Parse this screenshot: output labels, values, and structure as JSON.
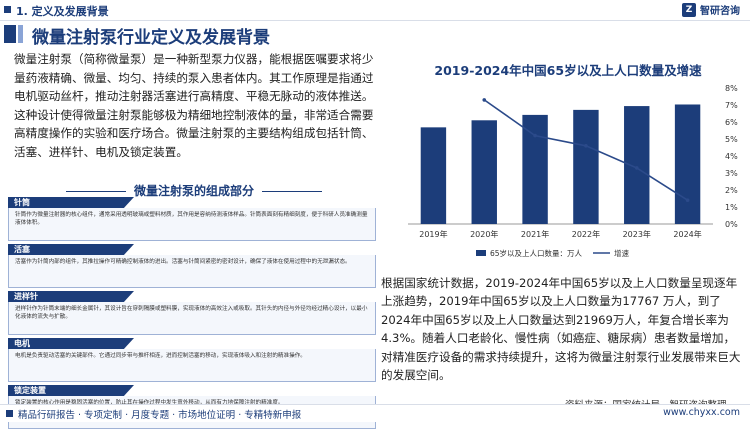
{
  "header": {
    "section": "1. 定义及发展背景",
    "logo_text": "智研咨询",
    "logo_mark": "Z"
  },
  "title": "微量注射泵行业定义及发展背景",
  "intro": "微量注射泵（简称微量泵）是一种新型泵力仪器，能根据医嘱要求将少量药液精确、微量、均匀、持续的泵入患者体内。其工作原理是指通过电机驱动丝杆，推动注射器活塞进行高精度、平稳无脉动的液体推送。这种设计使得微量注射泵能够极为精细地控制液体的量，非常适合需要高精度操作的实验和医疗场合。微量注射泵的主要结构组成包括针筒、活塞、进样针、电机及锁定装置。",
  "components": {
    "title": "微量注射泵的组成部分",
    "items": [
      {
        "name": "针筒",
        "text": "针筒作为微量注射器的核心组件，通常采用透明玻璃或塑料材质，其作用是容纳待测液体样品。针筒表面刻有精细刻度，便于科研人员准确测量液体体积。"
      },
      {
        "name": "活塞",
        "text": "活塞作为针筒内部的组件，其推拉操作可精确控制液体的进出。活塞与针筒间紧密的密封设计，确保了液体在使用过程中的无泄漏状态。"
      },
      {
        "name": "进样针",
        "text": "进样针作为针筒末端的细长金属针，其设计旨在穿刺隔膜或塑料膜，实现液体的高效注入或吸取。其针头的内径与外径均经过精心设计，以最小化液体的流失与扩散。"
      },
      {
        "name": "电机",
        "text": "电机是负责驱动活塞的关键部件。它通过同步带与推杆相连，进而控制活塞的移动，实现液体吸入和注射的精准操作。"
      },
      {
        "name": "锁定装置",
        "text": "锁定装置的核心作用是稳固活塞的位置，防止其在操作过程中发生意外移动，从而有力地保障注射的精准度。"
      }
    ]
  },
  "chart_data": {
    "type": "bar",
    "title": "2019-2024年中国65岁以及上人口数量及增速",
    "categories": [
      "2019年",
      "2020年",
      "2021年",
      "2022年",
      "2023年",
      "2024年"
    ],
    "series": [
      {
        "name": "65岁以及上人口数量：万人",
        "type": "bar",
        "axis": "left",
        "values": [
          17767,
          19064,
          20056,
          20978,
          21676,
          21969
        ]
      },
      {
        "name": "增速",
        "type": "line",
        "axis": "right",
        "values": [
          null,
          7.3,
          5.2,
          4.6,
          3.3,
          1.4
        ]
      }
    ],
    "ylim": [
      0,
      25000
    ],
    "y2lim": [
      0,
      8
    ],
    "y2ticks": [
      "0%",
      "1%",
      "2%",
      "3%",
      "4%",
      "5%",
      "6%",
      "7%",
      "8%"
    ],
    "legend_position": "bottom",
    "colors": {
      "bar": "#1c3d7a",
      "line": "#1c3d7a"
    }
  },
  "description": "根据国家统计数据，2019-2024年中国65岁以及上人口数量呈现逐年上涨趋势，2019年中国65岁以及上人口数量为17767 万人，到了2024年中国65岁以及上人口数量达到21969万人，年复合增长率为4.3%。随着人口老龄化、慢性病（如癌症、糖尿病）患者数量增加，对精准医疗设备的需求持续提升，这将为微量注射泵行业发展带来巨大的发展空间。",
  "source": "资料来源：国家统计局，智研咨询整理",
  "footer": {
    "left": "精品行研报告 · 专项定制 · 月度专题 · 市场地位证明 · 专精特新申报",
    "page": "www.chyxx.com"
  }
}
